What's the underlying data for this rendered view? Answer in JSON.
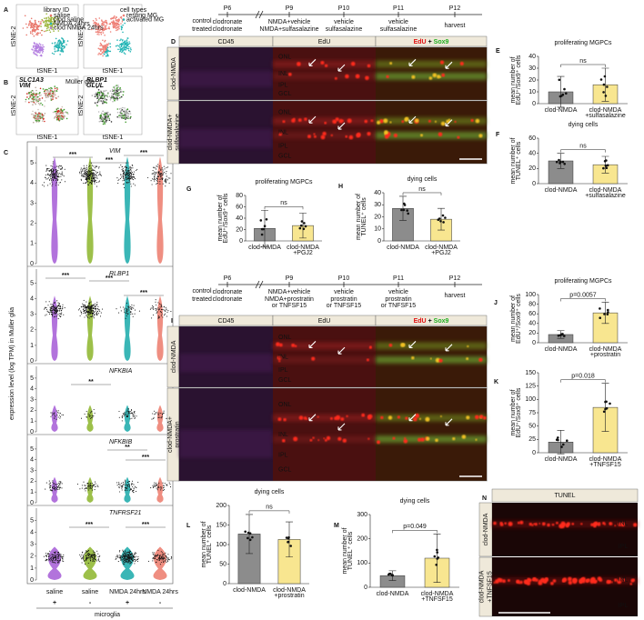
{
  "A": {
    "letter": "A",
    "id_title": "library ID",
    "ids": [
      "saline",
      "clod saline",
      "NMDA 24hrs",
      "clod NMDA 24hrs"
    ],
    "id_colors": [
      "#e8766b",
      "#9bb53a",
      "#26b3b3",
      "#b47fe0"
    ],
    "type_title": "cell types",
    "types": [
      "resting MG",
      "activated MG"
    ],
    "type_colors": [
      "#ee8077",
      "#22b5b5"
    ],
    "xlabel": "tSNE-1",
    "ylabel": "tSNE-2"
  },
  "B": {
    "letter": "B",
    "title": "Müller glia",
    "genes_left": [
      "SLC1A3",
      "VIM"
    ],
    "genes_right": [
      "RLBP1",
      "GLUL"
    ],
    "colors": [
      "#d42a1f",
      "#3f9a2a"
    ]
  },
  "C": {
    "letter": "C",
    "ylabel": "expression level (log TPM) in Muller glia",
    "genes": [
      "VIM",
      "RLBP1",
      "NFKBIA",
      "NFKBIB",
      "TNFRSF21"
    ],
    "groups": [
      "saline",
      "saline",
      "NMDA 24hrs",
      "NMDA 24hrs"
    ],
    "clodronate": [
      "+",
      "-",
      "+",
      "-"
    ],
    "footer": "microglia",
    "colors": [
      "#a45bd6",
      "#8cb52a",
      "#17a9a9",
      "#ec7a6b"
    ],
    "ylim": [
      0,
      5.5
    ],
    "yticks": [
      0,
      1,
      2,
      3,
      4,
      5
    ],
    "stars": {
      "three": "***",
      "two": "**"
    }
  },
  "D": {
    "letter": "D",
    "timeline": {
      "rows": [
        "control",
        "treated"
      ],
      "days": [
        "P6",
        "P9",
        "P10",
        "P11",
        "P12"
      ],
      "control": [
        "clodronate",
        "NMDA+vehicle",
        "vehicle",
        "vehicle"
      ],
      "treated": [
        "clodronate",
        "NMDA+sulfasalazine",
        "sulfasalazine",
        "sulfasalazine"
      ],
      "end": "harvest"
    },
    "channels": [
      "CD45",
      "EdU",
      "EdU",
      "+",
      "Sox9"
    ],
    "rows": [
      "clod-NMDA",
      "clod-NMDA+\nsulfasalazine"
    ],
    "layers": [
      "ONL",
      "INL",
      "IPL",
      "GCL"
    ]
  },
  "I": {
    "letter": "I",
    "timeline": {
      "rows": [
        "control",
        "treated"
      ],
      "days": [
        "P6",
        "P9",
        "P10",
        "P11",
        "P12"
      ],
      "control": [
        "clodronate",
        "NMDA+vehicle",
        "vehicle",
        "vehicle"
      ],
      "treated": [
        "clodronate",
        "NMDA+prostratin\nor TNFSF15",
        "prostratin\nor TNFSF15",
        "prostratin\nor TNFSF15"
      ],
      "end": "harvest"
    },
    "channels": [
      "CD45",
      "EdU",
      "EdU",
      "+",
      "Sox9"
    ],
    "rows": [
      "clod-NMDA",
      "clod-NMDA+\nprostratin"
    ],
    "layers": [
      "ONL",
      "INL",
      "IPL",
      "GCL"
    ]
  },
  "N": {
    "letter": "N",
    "title": "TUNEL",
    "rows": [
      "clod-NMDA",
      "clod-NMDA\n+TNFSF15"
    ],
    "layers": [
      "INL",
      "IPL"
    ]
  },
  "chart_data": [
    {
      "type": "bar",
      "label": "E",
      "title": "proliferating MGPCs",
      "ylabel": "mean number of\nEdU⁺/Sox9⁺ cells",
      "categories": [
        "clod-NMDA",
        "clod-NMDA\n+sulfasalazine"
      ],
      "values": [
        10,
        16
      ],
      "errors": [
        13,
        14
      ],
      "colors": [
        "#8c8c8c",
        "#f8e690"
      ],
      "ylim": [
        0,
        40
      ],
      "yticks": [
        0,
        10,
        20,
        30,
        40
      ],
      "annotation": "ns"
    },
    {
      "type": "bar",
      "label": "F",
      "title": "dying cells",
      "ylabel": "mean number of\nTUNEL⁺ cells",
      "categories": [
        "clod-NMDA",
        "clod-NMDA\n+sulfasalazine"
      ],
      "values": [
        30,
        25
      ],
      "errors": [
        10,
        11
      ],
      "colors": [
        "#8c8c8c",
        "#f8e690"
      ],
      "ylim": [
        0,
        60
      ],
      "yticks": [
        0,
        20,
        40,
        60
      ],
      "annotation": "ns"
    },
    {
      "type": "bar",
      "label": "G",
      "title": "proliferating MGPCs",
      "ylabel": "mean number of\nEdU⁺/Sox9⁺ cells",
      "categories": [
        "clod-NMDA",
        "clod-NMDA\n+PGJ2"
      ],
      "values": [
        22,
        27
      ],
      "errors": [
        32,
        22
      ],
      "colors": [
        "#8c8c8c",
        "#f8e690"
      ],
      "ylim": [
        0,
        80
      ],
      "yticks": [
        0,
        20,
        40,
        60,
        80
      ],
      "annotation": "ns"
    },
    {
      "type": "bar",
      "label": "H",
      "title": "dying cells",
      "ylabel": "mean number of\nTUNEL⁺ cells",
      "categories": [
        "clod-NMDA",
        "clod-NMDA\n+PGJ2"
      ],
      "values": [
        27,
        18
      ],
      "errors": [
        10,
        9
      ],
      "colors": [
        "#8c8c8c",
        "#f8e690"
      ],
      "ylim": [
        0,
        40
      ],
      "yticks": [
        0,
        10,
        20,
        30,
        40
      ],
      "annotation": "ns"
    },
    {
      "type": "bar",
      "label": "J",
      "title": "proliferating MGPCs",
      "ylabel": "mean number of\nEdU⁺/Sox9⁺ cells",
      "categories": [
        "clod-NMDA",
        "clod-NMDA\n+prostratin"
      ],
      "values": [
        17,
        62
      ],
      "errors": [
        8,
        22
      ],
      "colors": [
        "#8c8c8c",
        "#f8e690"
      ],
      "ylim": [
        0,
        100
      ],
      "yticks": [
        0,
        20,
        40,
        60,
        80,
        100
      ],
      "annotation": "p=0.0057"
    },
    {
      "type": "bar",
      "label": "K",
      "title": "",
      "ylabel": "mean number of\nEdU⁺/Sox9⁺ cells",
      "categories": [
        "clod-NMDA",
        "clod-NMDA\n+TNFSF15"
      ],
      "values": [
        20,
        85
      ],
      "errors": [
        22,
        45
      ],
      "colors": [
        "#8c8c8c",
        "#f8e690"
      ],
      "ylim": [
        0,
        150
      ],
      "yticks": [
        0,
        25,
        50,
        75,
        100,
        125,
        150
      ],
      "annotation": "p=0.018"
    },
    {
      "type": "bar",
      "label": "L",
      "title": "dying cells",
      "ylabel": "mean number of\nTUNEL⁺ cells",
      "categories": [
        "clod-NMDA",
        "clod-NMDA\n+prostratin"
      ],
      "values": [
        127,
        113
      ],
      "errors": [
        50,
        45
      ],
      "colors": [
        "#8c8c8c",
        "#f8e690"
      ],
      "ylim": [
        0,
        200
      ],
      "yticks": [
        0,
        50,
        100,
        150,
        200
      ],
      "annotation": "ns"
    },
    {
      "type": "bar",
      "label": "M",
      "title": "dying cells",
      "ylabel": "mean number of\nTUNEL⁺ cells",
      "categories": [
        "clod-NMDA",
        "clod-NMDA\n+TNFSF15"
      ],
      "values": [
        48,
        120
      ],
      "errors": [
        20,
        100
      ],
      "colors": [
        "#8c8c8c",
        "#f8e690"
      ],
      "ylim": [
        0,
        300
      ],
      "yticks": [
        0,
        100,
        200,
        300
      ],
      "annotation": "p=0.049"
    }
  ]
}
